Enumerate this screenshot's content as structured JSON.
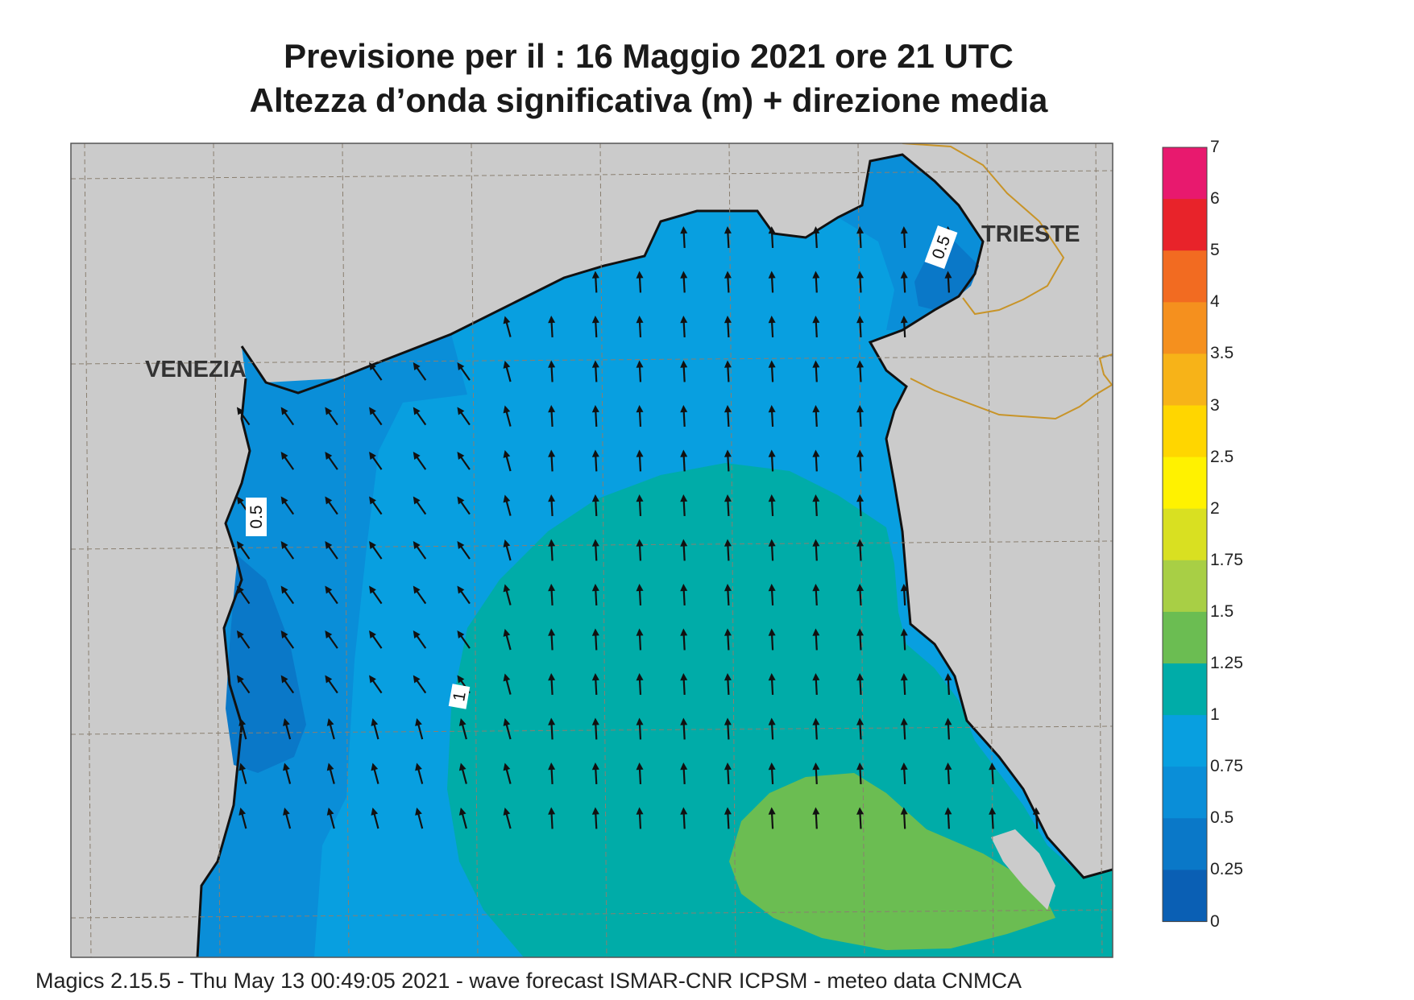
{
  "header": {
    "title_line1": "Previsione per il  :  16   Maggio  2021   ore 21 UTC",
    "title_line2": "Altezza d’onda significativa (m) + direzione media"
  },
  "map": {
    "cities": [
      "VENEZIA",
      "TRIESTE"
    ],
    "contour_labels": [
      "0.5",
      "0.5",
      "1"
    ],
    "colors": {
      "land": "#cbcbcb",
      "sea_0_25": "#0a5fb4",
      "sea_0_25_0_5": "#0a78c8",
      "sea_0_5_0_75": "#0a8ed8",
      "sea_0_75_1": "#089fe0",
      "sea_1_1_25": "#00aca8",
      "sea_1_25_1_5": "#6bbd52",
      "border": "#c89428",
      "grid": "#8a7f70"
    },
    "arrow_direction": "north (waves toward N, turning NW near the western coast)"
  },
  "legend": {
    "levels": [
      "7",
      "6",
      "5",
      "4",
      "3.5",
      "3",
      "2.5",
      "2",
      "1.75",
      "1.5",
      "1.25",
      "1",
      "0.75",
      "0.5",
      "0.25",
      "0"
    ],
    "colors": [
      "#e8196e",
      "#e8232a",
      "#f26b21",
      "#f5901e",
      "#f7b318",
      "#ffd600",
      "#fff200",
      "#d9e021",
      "#a8cf45",
      "#6bbd52",
      "#00aca8",
      "#089fe0",
      "#0a8ed8",
      "#0a78c8",
      "#0a5fb4"
    ]
  },
  "footer": {
    "text": "Magics 2.15.5 - Thu May 13 00:49:05 2021 - wave forecast  ISMAR-CNR  ICPSM - meteo data   CNMCA"
  }
}
